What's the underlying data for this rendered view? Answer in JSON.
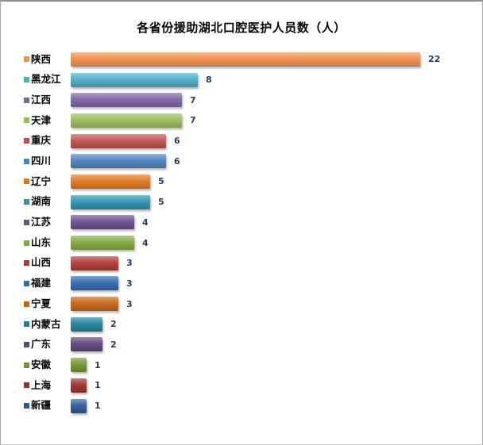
{
  "title": "各省份援助湖北口腔医护人员数（人）",
  "chart_data": {
    "type": "bar",
    "orientation": "horizontal",
    "title": "各省份援助湖北口腔医护人员数（人）",
    "xlabel": "",
    "ylabel": "",
    "xlim": [
      0,
      22
    ],
    "grid": false,
    "legend": "none",
    "data_labels": true,
    "categories": [
      "陕西",
      "黑龙江",
      "江西",
      "天津",
      "重庆",
      "四川",
      "辽宁",
      "湖南",
      "江苏",
      "山东",
      "山西",
      "福建",
      "宁夏",
      "内蒙古",
      "广东",
      "安徽",
      "上海",
      "新疆"
    ],
    "values": [
      22,
      8,
      7,
      7,
      6,
      6,
      5,
      5,
      4,
      4,
      3,
      3,
      3,
      2,
      2,
      1,
      1,
      1
    ],
    "colors": [
      "#ee8f4a",
      "#4bacc6",
      "#8064a2",
      "#9bbb59",
      "#c0504d",
      "#4f81bd",
      "#e2761b",
      "#2a93ae",
      "#694e8e",
      "#82a93e",
      "#ae3a38",
      "#3168b1",
      "#c26413",
      "#1f829c",
      "#5c4477",
      "#73942e",
      "#9b302d",
      "#2b5a93"
    ]
  },
  "style": {
    "value_label_color": "#1f3b5e",
    "title_color": "#000000",
    "frame_border_color": "#a6a6a6"
  }
}
